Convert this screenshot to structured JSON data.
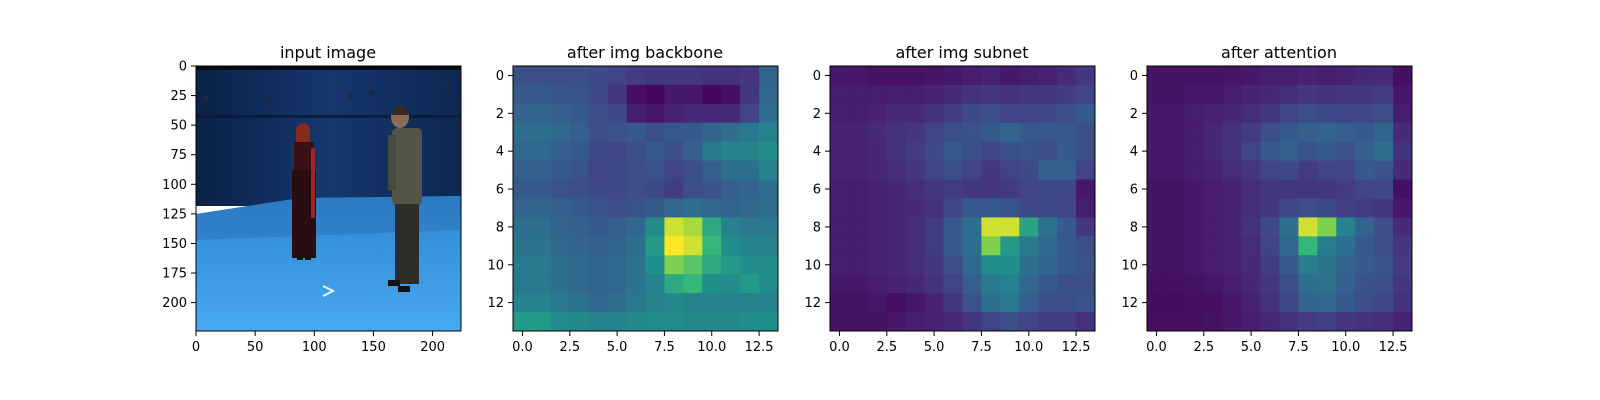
{
  "chart_data": [
    {
      "type": "image",
      "title": "input image",
      "xticks": [
        0,
        50,
        100,
        150,
        200
      ],
      "yticks": [
        0,
        25,
        50,
        75,
        100,
        125,
        150,
        175,
        200
      ],
      "xlim": [
        0,
        224
      ],
      "ylim": [
        224,
        0
      ],
      "content": "photo: two people standing in a blue studio room with a light-blue floor"
    },
    {
      "type": "heatmap",
      "title": "after img backbone",
      "xticks": [
        "0.0",
        "2.5",
        "5.0",
        "7.5",
        "10.0",
        "12.5"
      ],
      "yticks": [
        "0",
        "2",
        "4",
        "6",
        "8",
        "10",
        "12"
      ],
      "xlim": [
        -0.5,
        13.5
      ],
      "ylim": [
        13.5,
        -0.5
      ],
      "colormap": "viridis",
      "values": [
        [
          0.3,
          0.3,
          0.3,
          0.3,
          0.28,
          0.25,
          0.22,
          0.2,
          0.2,
          0.2,
          0.18,
          0.18,
          0.2,
          0.4
        ],
        [
          0.35,
          0.35,
          0.33,
          0.32,
          0.28,
          0.2,
          0.05,
          0.02,
          0.08,
          0.08,
          0.03,
          0.05,
          0.2,
          0.42
        ],
        [
          0.4,
          0.4,
          0.38,
          0.35,
          0.3,
          0.28,
          0.1,
          0.08,
          0.12,
          0.15,
          0.15,
          0.15,
          0.25,
          0.45
        ],
        [
          0.45,
          0.45,
          0.42,
          0.38,
          0.3,
          0.32,
          0.35,
          0.3,
          0.35,
          0.35,
          0.4,
          0.45,
          0.5,
          0.55
        ],
        [
          0.42,
          0.42,
          0.38,
          0.35,
          0.28,
          0.25,
          0.3,
          0.35,
          0.3,
          0.38,
          0.5,
          0.55,
          0.55,
          0.6
        ],
        [
          0.38,
          0.38,
          0.35,
          0.32,
          0.25,
          0.28,
          0.3,
          0.32,
          0.25,
          0.3,
          0.38,
          0.45,
          0.45,
          0.55
        ],
        [
          0.35,
          0.35,
          0.32,
          0.3,
          0.28,
          0.28,
          0.3,
          0.28,
          0.22,
          0.3,
          0.32,
          0.38,
          0.4,
          0.45
        ],
        [
          0.4,
          0.4,
          0.38,
          0.35,
          0.32,
          0.3,
          0.32,
          0.35,
          0.42,
          0.45,
          0.42,
          0.4,
          0.42,
          0.45
        ],
        [
          0.45,
          0.45,
          0.4,
          0.38,
          0.35,
          0.38,
          0.42,
          0.6,
          0.95,
          0.9,
          0.7,
          0.55,
          0.5,
          0.5
        ],
        [
          0.48,
          0.48,
          0.42,
          0.4,
          0.38,
          0.4,
          0.45,
          0.65,
          1.0,
          0.95,
          0.75,
          0.6,
          0.55,
          0.55
        ],
        [
          0.5,
          0.5,
          0.45,
          0.42,
          0.4,
          0.42,
          0.48,
          0.62,
          0.85,
          0.8,
          0.7,
          0.65,
          0.6,
          0.6
        ],
        [
          0.5,
          0.5,
          0.45,
          0.42,
          0.4,
          0.42,
          0.48,
          0.55,
          0.7,
          0.75,
          0.62,
          0.6,
          0.65,
          0.6
        ],
        [
          0.55,
          0.55,
          0.5,
          0.48,
          0.42,
          0.45,
          0.5,
          0.55,
          0.58,
          0.55,
          0.55,
          0.55,
          0.55,
          0.55
        ],
        [
          0.65,
          0.65,
          0.6,
          0.58,
          0.55,
          0.55,
          0.58,
          0.6,
          0.6,
          0.58,
          0.58,
          0.58,
          0.6,
          0.62
        ]
      ]
    },
    {
      "type": "heatmap",
      "title": "after img subnet",
      "xticks": [
        "0.0",
        "2.5",
        "5.0",
        "7.5",
        "10.0",
        "12.5"
      ],
      "yticks": [
        "0",
        "2",
        "4",
        "6",
        "8",
        "10",
        "12"
      ],
      "xlim": [
        -0.5,
        13.5
      ],
      "ylim": [
        13.5,
        -0.5
      ],
      "colormap": "viridis",
      "values": [
        [
          0.08,
          0.08,
          0.06,
          0.06,
          0.06,
          0.07,
          0.08,
          0.1,
          0.12,
          0.08,
          0.1,
          0.12,
          0.15,
          0.2
        ],
        [
          0.1,
          0.1,
          0.1,
          0.1,
          0.1,
          0.12,
          0.15,
          0.18,
          0.2,
          0.18,
          0.2,
          0.2,
          0.22,
          0.25
        ],
        [
          0.1,
          0.1,
          0.12,
          0.15,
          0.15,
          0.18,
          0.22,
          0.28,
          0.3,
          0.25,
          0.25,
          0.28,
          0.3,
          0.35
        ],
        [
          0.12,
          0.12,
          0.15,
          0.18,
          0.2,
          0.25,
          0.3,
          0.32,
          0.35,
          0.4,
          0.35,
          0.35,
          0.35,
          0.3
        ],
        [
          0.12,
          0.12,
          0.14,
          0.18,
          0.22,
          0.28,
          0.35,
          0.3,
          0.25,
          0.3,
          0.32,
          0.3,
          0.35,
          0.3
        ],
        [
          0.12,
          0.12,
          0.14,
          0.16,
          0.2,
          0.25,
          0.3,
          0.25,
          0.2,
          0.25,
          0.28,
          0.38,
          0.38,
          0.25
        ],
        [
          0.1,
          0.1,
          0.12,
          0.14,
          0.16,
          0.2,
          0.22,
          0.2,
          0.2,
          0.22,
          0.25,
          0.28,
          0.28,
          0.08
        ],
        [
          0.1,
          0.1,
          0.12,
          0.14,
          0.15,
          0.18,
          0.25,
          0.35,
          0.35,
          0.32,
          0.28,
          0.28,
          0.25,
          0.1
        ],
        [
          0.1,
          0.1,
          0.12,
          0.14,
          0.16,
          0.22,
          0.35,
          0.45,
          0.95,
          0.95,
          0.68,
          0.48,
          0.35,
          0.2
        ],
        [
          0.1,
          0.1,
          0.12,
          0.14,
          0.16,
          0.22,
          0.35,
          0.45,
          0.85,
          0.65,
          0.5,
          0.42,
          0.35,
          0.3
        ],
        [
          0.1,
          0.1,
          0.12,
          0.14,
          0.16,
          0.2,
          0.3,
          0.42,
          0.6,
          0.62,
          0.45,
          0.4,
          0.35,
          0.32
        ],
        [
          0.08,
          0.08,
          0.1,
          0.12,
          0.14,
          0.18,
          0.25,
          0.38,
          0.5,
          0.55,
          0.42,
          0.35,
          0.3,
          0.3
        ],
        [
          0.06,
          0.06,
          0.08,
          0.05,
          0.08,
          0.12,
          0.2,
          0.32,
          0.45,
          0.5,
          0.38,
          0.3,
          0.3,
          0.32
        ],
        [
          0.06,
          0.06,
          0.06,
          0.08,
          0.1,
          0.12,
          0.15,
          0.2,
          0.25,
          0.3,
          0.25,
          0.22,
          0.22,
          0.18
        ]
      ]
    },
    {
      "type": "heatmap",
      "title": "after attention",
      "xticks": [
        "0.0",
        "2.5",
        "5.0",
        "7.5",
        "10.0",
        "12.5"
      ],
      "yticks": [
        "0",
        "2",
        "4",
        "6",
        "8",
        "10",
        "12"
      ],
      "xlim": [
        -0.5,
        13.5
      ],
      "ylim": [
        13.5,
        -0.5
      ],
      "colormap": "viridis",
      "values": [
        [
          0.06,
          0.06,
          0.06,
          0.06,
          0.07,
          0.08,
          0.1,
          0.1,
          0.12,
          0.1,
          0.12,
          0.14,
          0.15,
          0.05
        ],
        [
          0.06,
          0.06,
          0.08,
          0.08,
          0.1,
          0.12,
          0.14,
          0.16,
          0.2,
          0.18,
          0.2,
          0.2,
          0.22,
          0.08
        ],
        [
          0.08,
          0.08,
          0.1,
          0.12,
          0.14,
          0.16,
          0.2,
          0.25,
          0.3,
          0.28,
          0.26,
          0.28,
          0.3,
          0.1
        ],
        [
          0.08,
          0.08,
          0.1,
          0.14,
          0.18,
          0.22,
          0.3,
          0.35,
          0.38,
          0.4,
          0.38,
          0.35,
          0.4,
          0.15
        ],
        [
          0.08,
          0.08,
          0.1,
          0.14,
          0.18,
          0.25,
          0.35,
          0.38,
          0.32,
          0.35,
          0.32,
          0.38,
          0.45,
          0.18
        ],
        [
          0.08,
          0.08,
          0.1,
          0.12,
          0.16,
          0.2,
          0.25,
          0.28,
          0.22,
          0.25,
          0.26,
          0.35,
          0.32,
          0.15
        ],
        [
          0.06,
          0.06,
          0.08,
          0.1,
          0.12,
          0.16,
          0.2,
          0.2,
          0.2,
          0.2,
          0.22,
          0.25,
          0.28,
          0.05
        ],
        [
          0.06,
          0.06,
          0.08,
          0.1,
          0.12,
          0.16,
          0.2,
          0.28,
          0.3,
          0.28,
          0.24,
          0.22,
          0.2,
          0.08
        ],
        [
          0.06,
          0.06,
          0.08,
          0.1,
          0.12,
          0.18,
          0.28,
          0.45,
          0.95,
          0.85,
          0.55,
          0.4,
          0.3,
          0.15
        ],
        [
          0.06,
          0.06,
          0.08,
          0.1,
          0.12,
          0.16,
          0.25,
          0.42,
          0.75,
          0.52,
          0.45,
          0.35,
          0.3,
          0.2
        ],
        [
          0.06,
          0.06,
          0.08,
          0.1,
          0.12,
          0.15,
          0.22,
          0.35,
          0.52,
          0.48,
          0.4,
          0.35,
          0.32,
          0.22
        ],
        [
          0.05,
          0.05,
          0.06,
          0.08,
          0.1,
          0.14,
          0.2,
          0.3,
          0.45,
          0.48,
          0.38,
          0.32,
          0.3,
          0.2
        ],
        [
          0.04,
          0.04,
          0.05,
          0.05,
          0.08,
          0.12,
          0.18,
          0.28,
          0.4,
          0.42,
          0.35,
          0.3,
          0.28,
          0.18
        ],
        [
          0.05,
          0.05,
          0.05,
          0.06,
          0.08,
          0.1,
          0.14,
          0.18,
          0.22,
          0.24,
          0.2,
          0.18,
          0.16,
          0.12
        ]
      ]
    }
  ]
}
